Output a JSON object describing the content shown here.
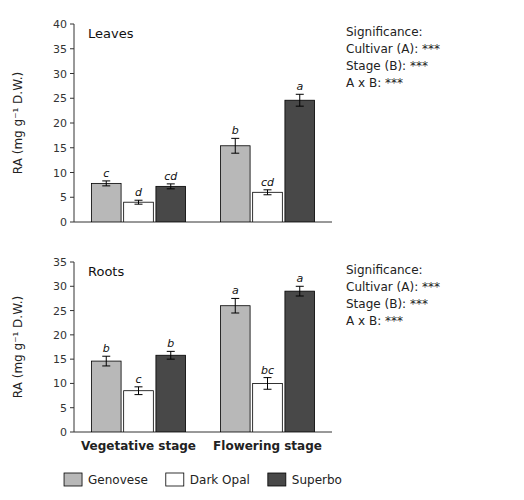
{
  "chart_data": [
    {
      "type": "bar",
      "title": "Leaves",
      "y_label": "RA (mg g⁻¹ D.W.)",
      "categories": [
        null,
        null
      ],
      "series": [
        {
          "name": "Genovese",
          "color": "#b8b8b8",
          "values": [
            7.8,
            15.4
          ],
          "errors": [
            0.5,
            1.5
          ],
          "annotations": [
            "c",
            "b"
          ]
        },
        {
          "name": "Dark Opal",
          "color": "#ffffff",
          "values": [
            4.0,
            6.0
          ],
          "errors": [
            0.4,
            0.5
          ],
          "annotations": [
            "d",
            "cd"
          ]
        },
        {
          "name": "Superbo",
          "color": "#484848",
          "values": [
            7.2,
            24.6
          ],
          "errors": [
            0.5,
            1.2
          ],
          "annotations": [
            "cd",
            "a"
          ]
        }
      ],
      "ylim": [
        0,
        40
      ],
      "yticks": [
        0,
        5,
        10,
        15,
        20,
        25,
        30,
        35,
        40
      ],
      "grid": false,
      "annotations": [
        "Significance:",
        "Cultivar (A): ***",
        "Stage (B): ***",
        "A x B: ***"
      ]
    },
    {
      "type": "bar",
      "title": "Roots",
      "y_label": "RA (mg g⁻¹ D.W.)",
      "categories": [
        "Vegetative stage",
        "Flowering stage"
      ],
      "series": [
        {
          "name": "Genovese",
          "color": "#b8b8b8",
          "values": [
            14.6,
            26.0
          ],
          "errors": [
            1.0,
            1.5
          ],
          "annotations": [
            "b",
            "a"
          ]
        },
        {
          "name": "Dark Opal",
          "color": "#ffffff",
          "values": [
            8.5,
            10.0
          ],
          "errors": [
            0.8,
            1.2
          ],
          "annotations": [
            "c",
            "bc"
          ]
        },
        {
          "name": "Superbo",
          "color": "#484848",
          "values": [
            15.8,
            29.0
          ],
          "errors": [
            0.8,
            1.0
          ],
          "annotations": [
            "b",
            "a"
          ]
        }
      ],
      "ylim": [
        0,
        35
      ],
      "yticks": [
        0,
        5,
        10,
        15,
        20,
        25,
        30,
        35
      ],
      "grid": false,
      "legend": "bottom",
      "annotations": [
        "Significance:",
        "Cultivar (A): ***",
        "Stage (B): ***",
        "A x B: ***"
      ]
    }
  ]
}
